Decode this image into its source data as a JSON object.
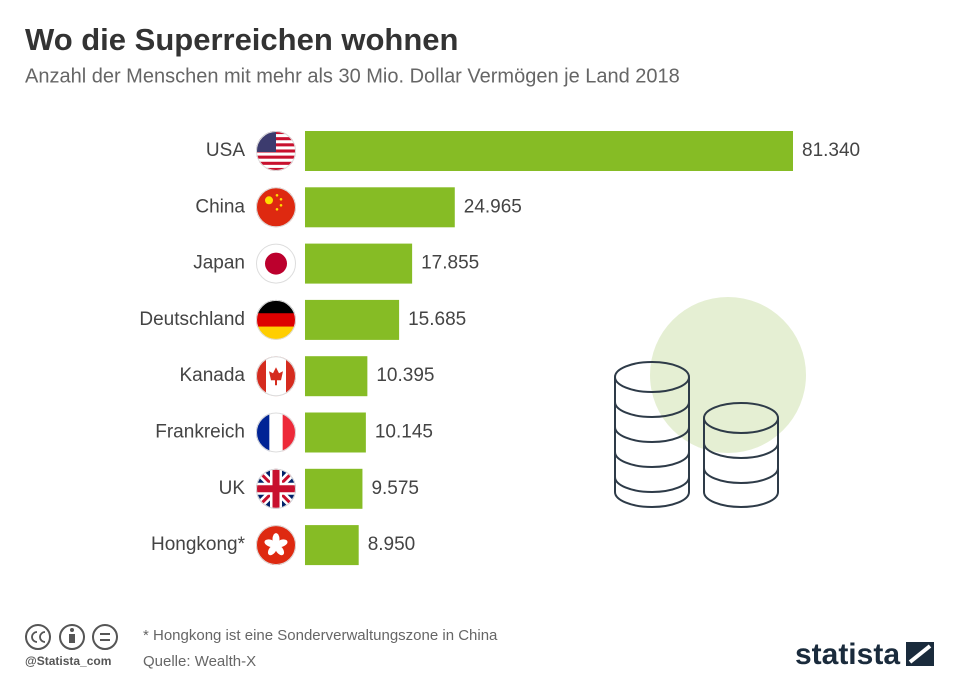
{
  "chart_data": {
    "type": "bar",
    "orientation": "horizontal",
    "title": "Wo die Superreichen wohnen",
    "subtitle": "Anzahl der Menschen mit mehr als 30 Mio. Dollar Vermögen je Land 2018",
    "categories": [
      "USA",
      "China",
      "Japan",
      "Deutschland",
      "Kanada",
      "Frankreich",
      "UK",
      "Hongkong*"
    ],
    "values": [
      81340,
      24965,
      17855,
      15685,
      10395,
      10145,
      9575,
      8950
    ],
    "value_labels": [
      "81.340",
      "24.965",
      "17.855",
      "15.685",
      "10.395",
      "10.145",
      "9.575",
      "8.950"
    ],
    "color": "#86bc25"
  },
  "footer": {
    "note": "* Hongkong ist eine Sonderverwaltungszone in China",
    "source": "Quelle: Wealth-X",
    "handle": "@Statista_com",
    "brand": "statista"
  }
}
